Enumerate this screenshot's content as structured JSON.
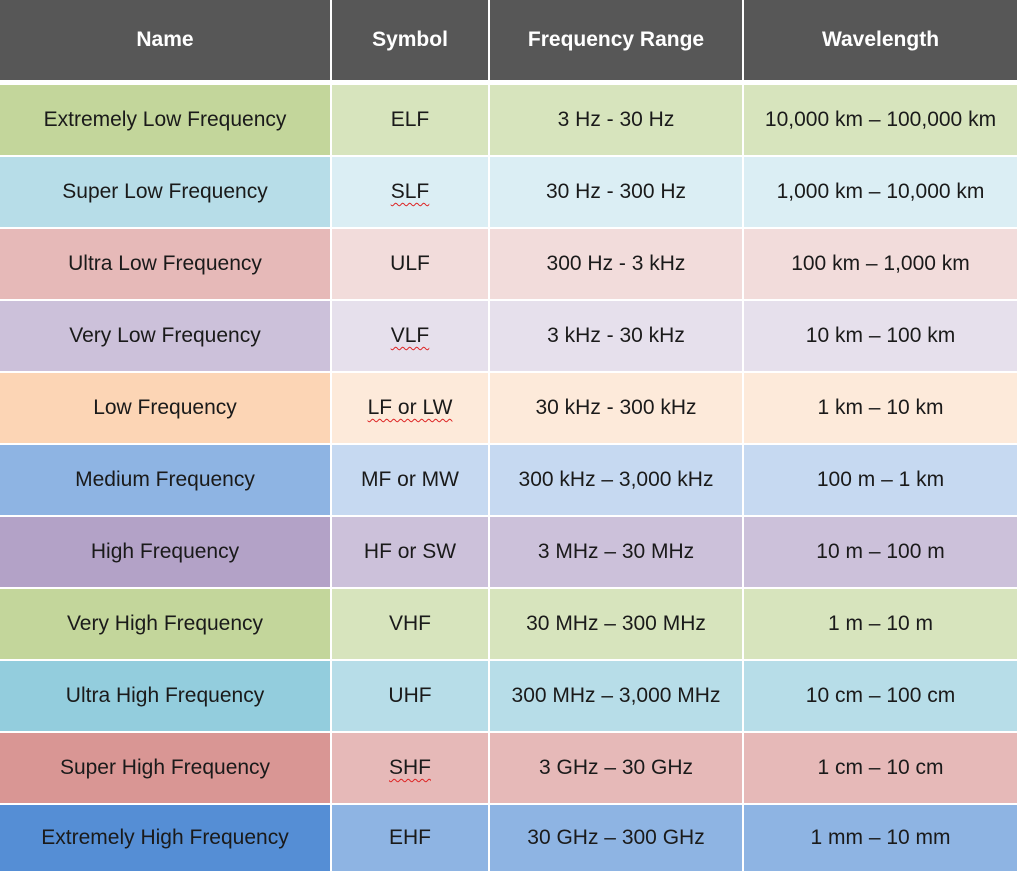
{
  "headers": [
    "Name",
    "Symbol",
    "Frequency Range",
    "Wavelength"
  ],
  "rows": [
    {
      "name": "Extremely Low Frequency",
      "symbol": "ELF",
      "range": "3 Hz - 30 Hz",
      "wavelength": "10,000 km – 100,000 km",
      "name_color": "#c3d69b",
      "cell_color": "#d7e4bd"
    },
    {
      "name": "Super Low Frequency",
      "symbol": "SLF",
      "range": "30 Hz - 300 Hz",
      "wavelength": "1,000 km – 10,000 km",
      "name_color": "#b7dde8",
      "cell_color": "#dbeef4"
    },
    {
      "name": "Ultra Low Frequency",
      "symbol": "ULF",
      "range": "300 Hz - 3 kHz",
      "wavelength": "100 km – 1,000 km",
      "name_color": "#e6b9b8",
      "cell_color": "#f2dcdb"
    },
    {
      "name": "Very Low Frequency",
      "symbol": "VLF",
      "range": "3 kHz - 30 kHz",
      "wavelength": "10 km – 100 km",
      "name_color": "#ccc1da",
      "cell_color": "#e6e0ec"
    },
    {
      "name": "Low Frequency",
      "symbol": "LF or LW",
      "range": "30 kHz - 300 kHz",
      "wavelength": "1 km – 10 km",
      "name_color": "#fcd5b5",
      "cell_color": "#fdeada"
    },
    {
      "name": "Medium Frequency",
      "symbol": "MF or MW",
      "range": "300 kHz – 3,000 kHz",
      "wavelength": "100 m – 1 km",
      "name_color": "#8eb4e3",
      "cell_color": "#c6d9f1"
    },
    {
      "name": "High Frequency",
      "symbol": "HF or SW",
      "range": "3 MHz – 30 MHz",
      "wavelength": "10 m – 100 m",
      "name_color": "#b3a2c7",
      "cell_color": "#ccc1da"
    },
    {
      "name": "Very High Frequency",
      "symbol": "VHF",
      "range": "30 MHz – 300 MHz",
      "wavelength": "1 m – 10 m",
      "name_color": "#c3d69b",
      "cell_color": "#d7e4bd"
    },
    {
      "name": "Ultra High Frequency",
      "symbol": "UHF",
      "range": "300 MHz – 3,000 MHz",
      "wavelength": "10 cm – 100 cm",
      "name_color": "#93cddd",
      "cell_color": "#b7dde8"
    },
    {
      "name": "Super High Frequency",
      "symbol": "SHF",
      "range": "3 GHz – 30 GHz",
      "wavelength": "1 cm – 10 cm",
      "name_color": "#d99694",
      "cell_color": "#e6b9b8"
    },
    {
      "name": "Extremely High Frequency",
      "symbol": "EHF",
      "range": "30 GHz – 300 GHz",
      "wavelength": "1 mm – 10 mm",
      "name_color": "#558ed5",
      "cell_color": "#8eb4e3"
    }
  ],
  "header_color": "#575757"
}
